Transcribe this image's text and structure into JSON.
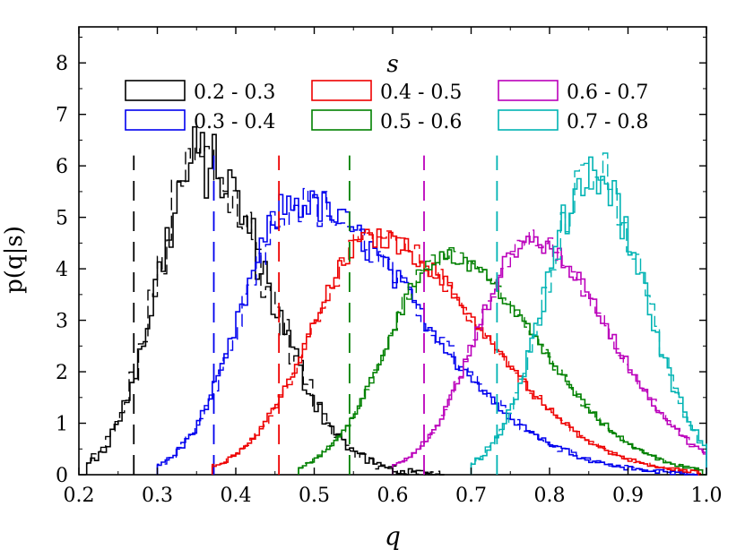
{
  "chart_data": {
    "type": "histogram-step",
    "xlabel": "q",
    "ylabel": "p(q|s)",
    "xlim": [
      0.2,
      1.0
    ],
    "ylim": [
      0,
      8.7
    ],
    "xticks": [
      "0.2",
      "0.3",
      "0.4",
      "0.5",
      "0.6",
      "0.7",
      "0.8",
      "0.9",
      "1.0"
    ],
    "yticks": [
      "0",
      "1",
      "2",
      "3",
      "4",
      "5",
      "6",
      "7",
      "8"
    ],
    "legend_title": "s",
    "series": [
      {
        "name": "0.2 - 0.3",
        "color": "#000000",
        "mean": 0.27,
        "sigma": 0.055,
        "peak_q": 0.355,
        "peak": 6.1,
        "qmin": 0.21,
        "qmax": 0.66,
        "tail": 0.04,
        "noise": 0.55
      },
      {
        "name": "0.3 - 0.4",
        "color": "#0000ee",
        "mean": 0.372,
        "sigma": 0.075,
        "peak_q": 0.475,
        "peak": 5.3,
        "qmin": 0.3,
        "qmax": 0.985,
        "tail": 0.25,
        "noise": 0.3
      },
      {
        "name": "0.4 - 0.5",
        "color": "#ee0000",
        "mean": 0.455,
        "sigma": 0.09,
        "peak_q": 0.575,
        "peak": 4.6,
        "qmin": 0.37,
        "qmax": 0.99,
        "tail": 0.45,
        "noise": 0.2
      },
      {
        "name": "0.5 - 0.6",
        "color": "#008000",
        "mean": 0.545,
        "sigma": 0.1,
        "peak_q": 0.665,
        "peak": 4.25,
        "qmin": 0.48,
        "qmax": 0.995,
        "tail": 0.6,
        "noise": 0.18
      },
      {
        "name": "0.6 - 0.7",
        "color": "#bb00bb",
        "mean": 0.64,
        "sigma": 0.09,
        "peak_q": 0.775,
        "peak": 4.55,
        "qmin": 0.6,
        "qmax": 1.0,
        "tail": 1.0,
        "noise": 0.2
      },
      {
        "name": "0.7 - 0.8",
        "color": "#00b3b3",
        "mean": 0.733,
        "sigma": 0.065,
        "peak_q": 0.855,
        "peak": 5.9,
        "qmin": 0.7,
        "qmax": 1.0,
        "tail": 1.0,
        "noise": 0.35
      }
    ]
  }
}
